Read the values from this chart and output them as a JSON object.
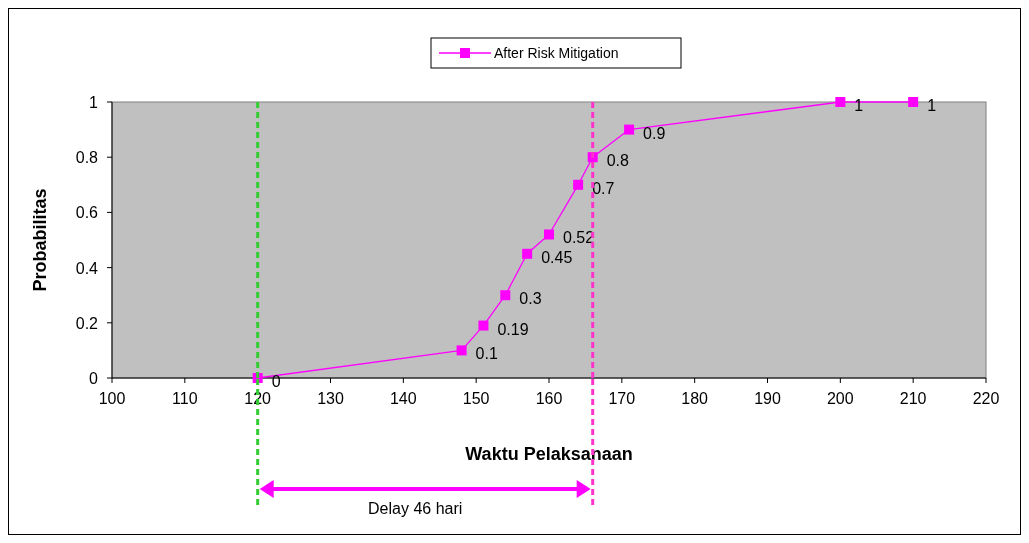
{
  "chart_data": {
    "type": "line",
    "xlabel": "Waktu Pelaksanaan",
    "ylabel": "Probabilitas",
    "x": [
      120,
      148,
      151,
      154,
      157,
      160,
      164,
      166,
      171,
      200,
      210
    ],
    "series": [
      {
        "name": "After Risk Mitigation",
        "color": "#ff00ff",
        "values": [
          0,
          0.1,
          0.19,
          0.3,
          0.45,
          0.52,
          0.7,
          0.8,
          0.9,
          1,
          1
        ]
      }
    ],
    "xlim": [
      100,
      220
    ],
    "xticks": [
      100,
      110,
      120,
      130,
      140,
      150,
      160,
      170,
      180,
      190,
      200,
      210,
      220
    ],
    "ylim": [
      0,
      1
    ],
    "yticks": [
      0,
      0.2,
      0.4,
      0.6,
      0.8,
      1
    ],
    "marker": "square",
    "line_style": "solid",
    "data_labels": true,
    "legend": "top",
    "grid": false,
    "ref_lines": [
      {
        "axis": "x",
        "value": 120,
        "color": "#33cc33",
        "line_style": "dashed"
      },
      {
        "axis": "x",
        "value": 166,
        "color": "#ff33cc",
        "line_style": "dashed"
      }
    ],
    "annotations": [
      "Delay 46 hari"
    ]
  }
}
